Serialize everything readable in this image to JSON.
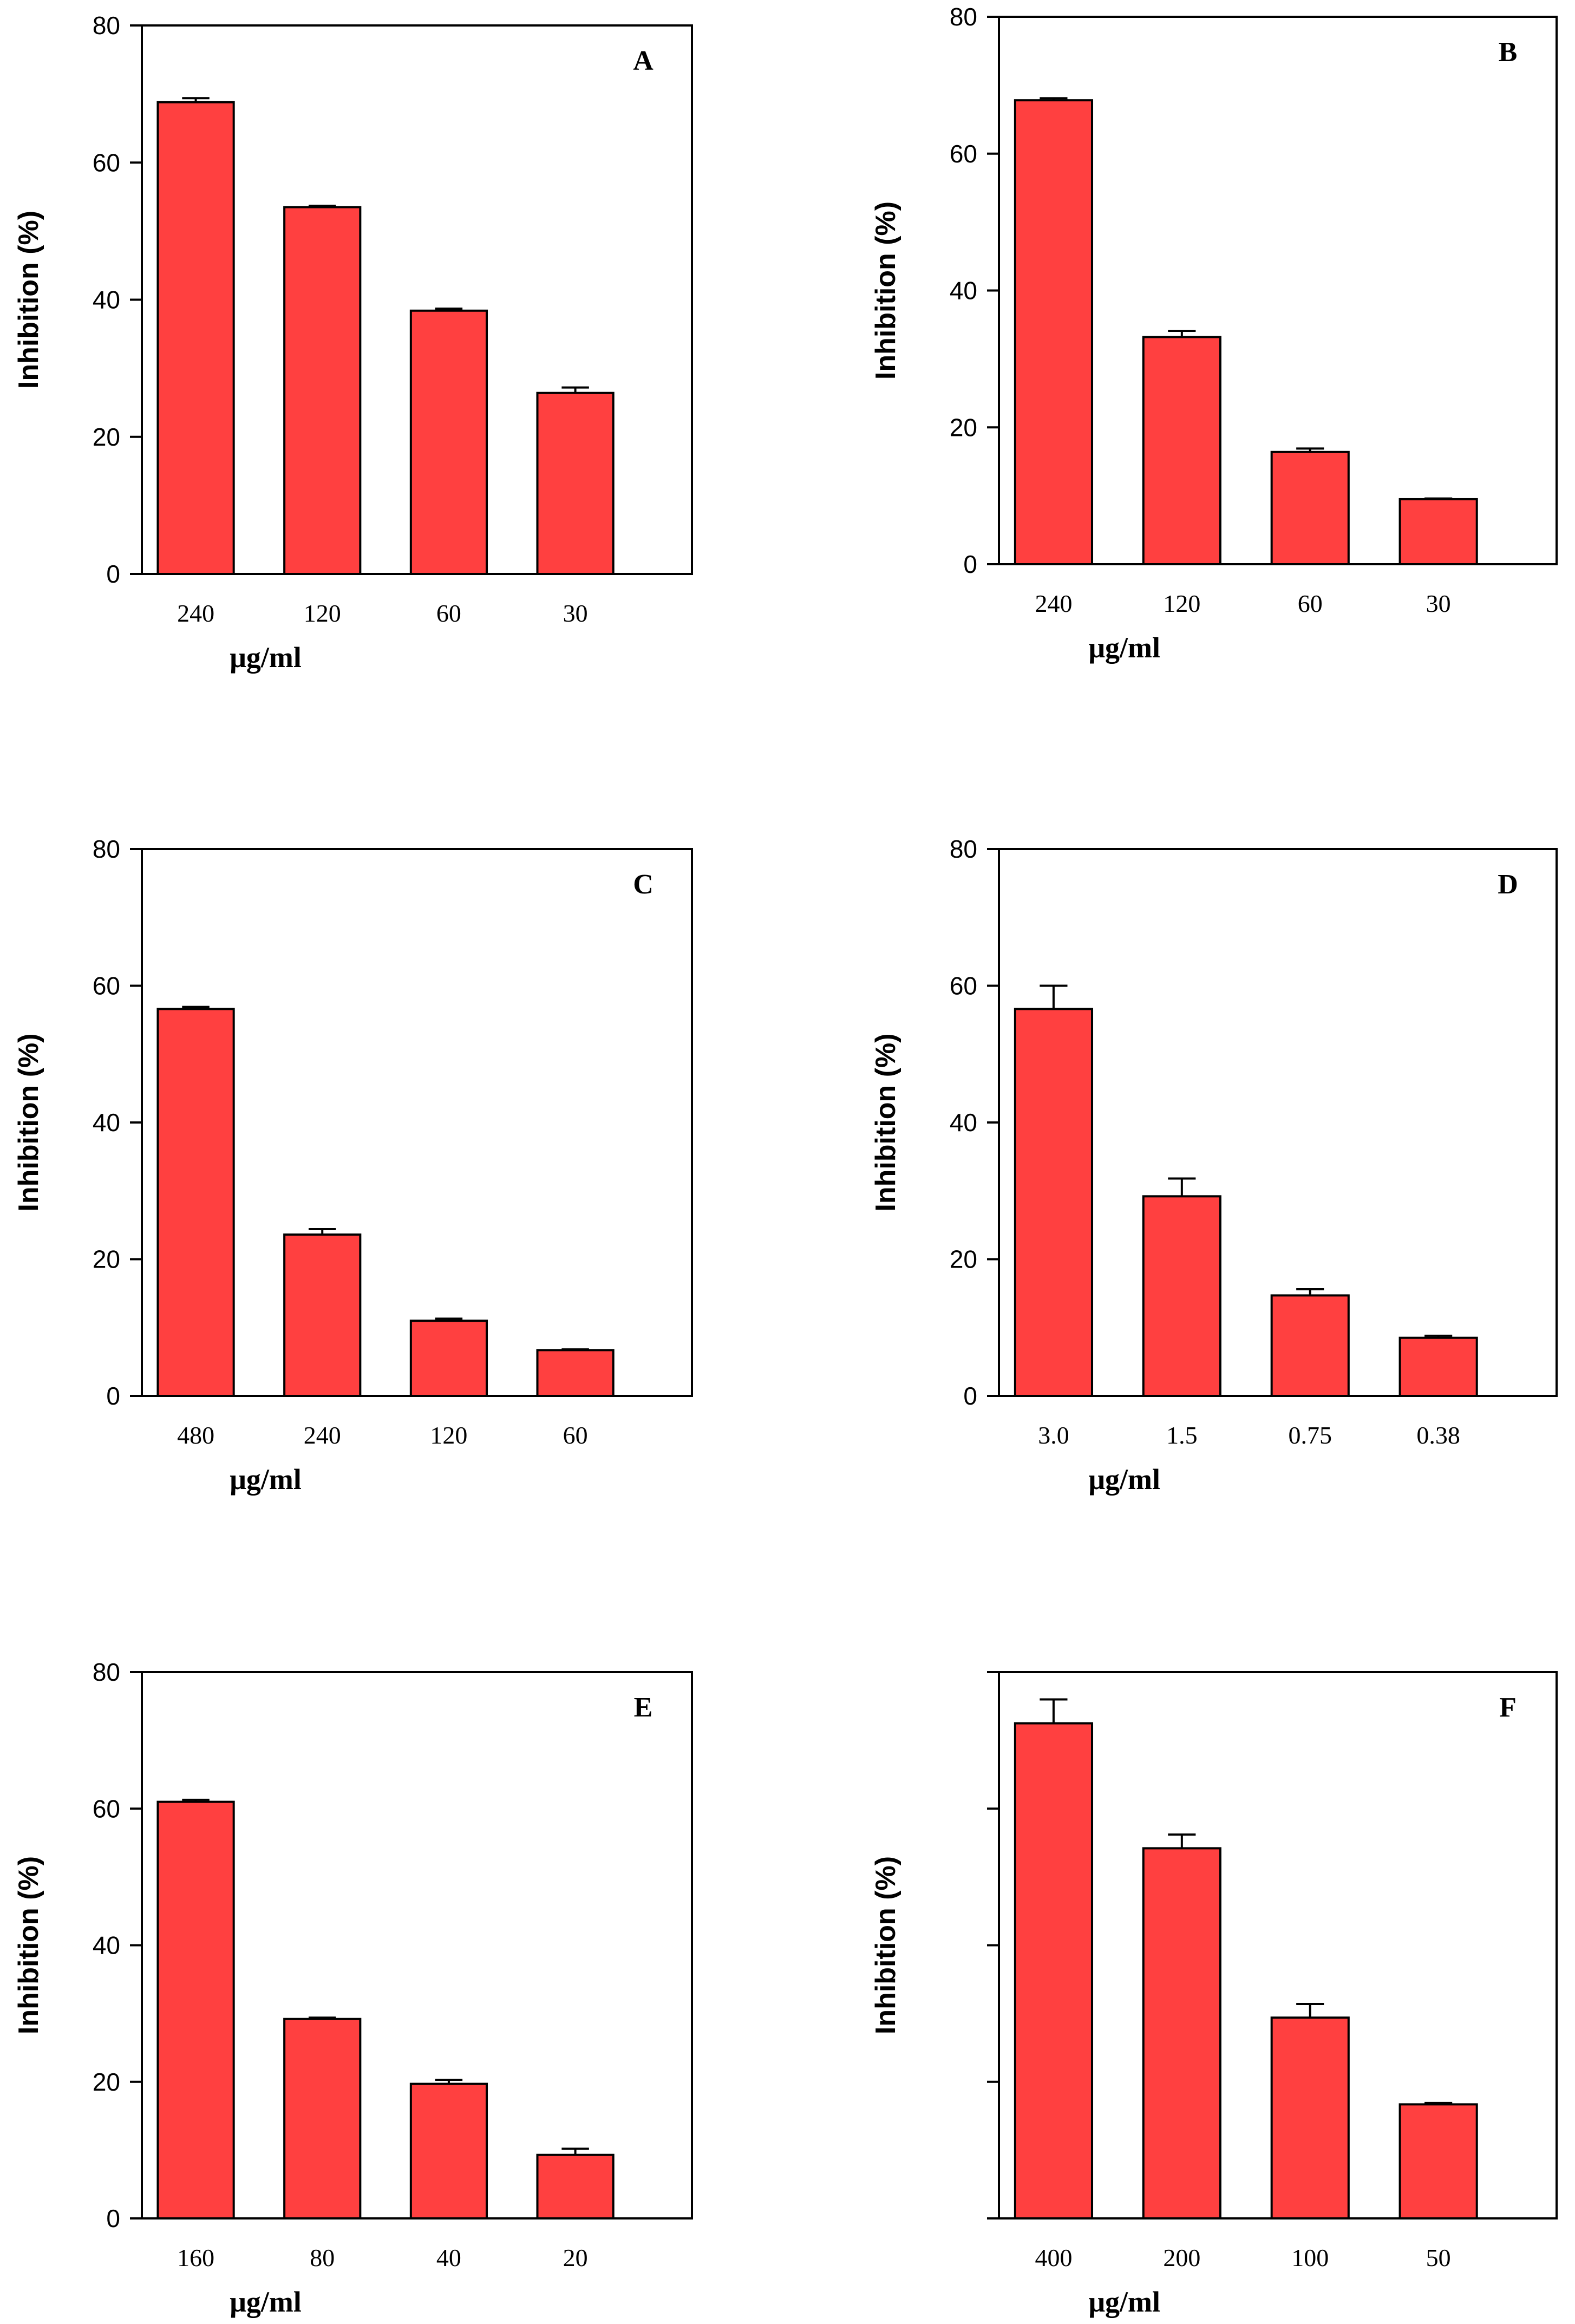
{
  "colors": {
    "bar": "#ff4040",
    "stroke": "#000000",
    "background": "#ffffff"
  },
  "chart_data": [
    {
      "type": "bar",
      "title": "A",
      "categories": [
        "240",
        "120",
        "60",
        "30"
      ],
      "values": [
        68.8,
        53.5,
        38.4,
        26.4
      ],
      "errors": [
        0.6,
        0.2,
        0.3,
        0.8
      ],
      "xlabel": "μg/ml",
      "ylabel": "Inhibition (%)",
      "ylim": [
        0,
        80
      ],
      "yticks": [
        "0",
        "20",
        "40",
        "60",
        "80"
      ],
      "grid": false
    },
    {
      "type": "bar",
      "title": "B",
      "categories": [
        "240",
        "120",
        "60",
        "30"
      ],
      "values": [
        67.8,
        33.2,
        16.4,
        9.5
      ],
      "errors": [
        0.3,
        0.9,
        0.5,
        0.1
      ],
      "xlabel": "μg/ml",
      "ylabel": "Inhibition (%)",
      "ylim": [
        0,
        80
      ],
      "yticks": [
        "0",
        "20",
        "40",
        "60",
        "80"
      ],
      "grid": false
    },
    {
      "type": "bar",
      "title": "C",
      "categories": [
        "480",
        "240",
        "120",
        "60"
      ],
      "values": [
        56.6,
        23.6,
        11.0,
        6.7
      ],
      "errors": [
        0.3,
        0.8,
        0.3,
        0.1
      ],
      "xlabel": "μg/ml",
      "ylabel": "Inhibition (%)",
      "ylim": [
        0,
        80
      ],
      "yticks": [
        "0",
        "20",
        "40",
        "60",
        "80"
      ],
      "grid": false
    },
    {
      "type": "bar",
      "title": "D",
      "categories": [
        "3.0",
        "1.5",
        "0.75",
        "0.38"
      ],
      "values": [
        56.6,
        29.2,
        14.7,
        8.5
      ],
      "errors": [
        3.4,
        2.6,
        0.9,
        0.3
      ],
      "xlabel": "μg/ml",
      "ylabel": "Inhibition (%)",
      "ylim": [
        0,
        80
      ],
      "yticks": [
        "0",
        "20",
        "40",
        "60",
        "80"
      ],
      "grid": false
    },
    {
      "type": "bar",
      "title": "E",
      "categories": [
        "160",
        "80",
        "40",
        "20"
      ],
      "values": [
        61.0,
        29.2,
        19.7,
        9.3
      ],
      "errors": [
        0.3,
        0.2,
        0.6,
        0.9
      ],
      "xlabel": "μg/ml",
      "ylabel": "Inhibition (%)",
      "ylim": [
        0,
        80
      ],
      "yticks": [
        "0",
        "20",
        "40",
        "60",
        "80"
      ],
      "grid": false
    },
    {
      "type": "bar",
      "title": "F",
      "categories": [
        "400",
        "200",
        "100",
        "50"
      ],
      "values": [
        72.5,
        54.2,
        29.4,
        16.7
      ],
      "errors": [
        3.5,
        2.0,
        2.0,
        0.2
      ],
      "xlabel": "μg/ml",
      "ylabel": "Inhibition (%)",
      "ylim": [
        0,
        80
      ],
      "yticks": [
        "",
        "",
        "",
        "",
        ""
      ],
      "grid": false
    }
  ]
}
